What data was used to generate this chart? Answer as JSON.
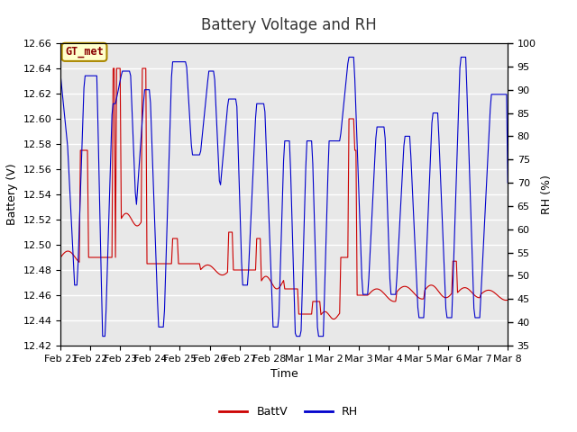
{
  "title": "Battery Voltage and RH",
  "xlabel": "Time",
  "ylabel_left": "Battery (V)",
  "ylabel_right": "RH (%)",
  "ylim_left": [
    12.42,
    12.66
  ],
  "ylim_right": [
    35,
    100
  ],
  "yticks_left": [
    12.42,
    12.44,
    12.46,
    12.48,
    12.5,
    12.52,
    12.54,
    12.56,
    12.58,
    12.6,
    12.62,
    12.64,
    12.66
  ],
  "yticks_right": [
    35,
    40,
    45,
    50,
    55,
    60,
    65,
    70,
    75,
    80,
    85,
    90,
    95,
    100
  ],
  "xtick_labels": [
    "Feb 21",
    "Feb 22",
    "Feb 23",
    "Feb 24",
    "Feb 25",
    "Feb 26",
    "Feb 27",
    "Feb 28",
    "Mar 1",
    "Mar 2",
    "Mar 3",
    "Mar 4",
    "Mar 5",
    "Mar 6",
    "Mar 7",
    "Mar 8"
  ],
  "watermark_text": "GT_met",
  "watermark_bg": "#ffffcc",
  "watermark_border": "#aa8800",
  "fig_bg_color": "#ffffff",
  "plot_bg_color": "#e8e8e8",
  "line_battv_color": "#cc0000",
  "line_rh_color": "#0000cc",
  "legend_battv": "BattV",
  "legend_rh": "RH",
  "grid_color": "#d8d8d8",
  "title_fontsize": 12,
  "axis_fontsize": 9,
  "tick_fontsize": 8
}
